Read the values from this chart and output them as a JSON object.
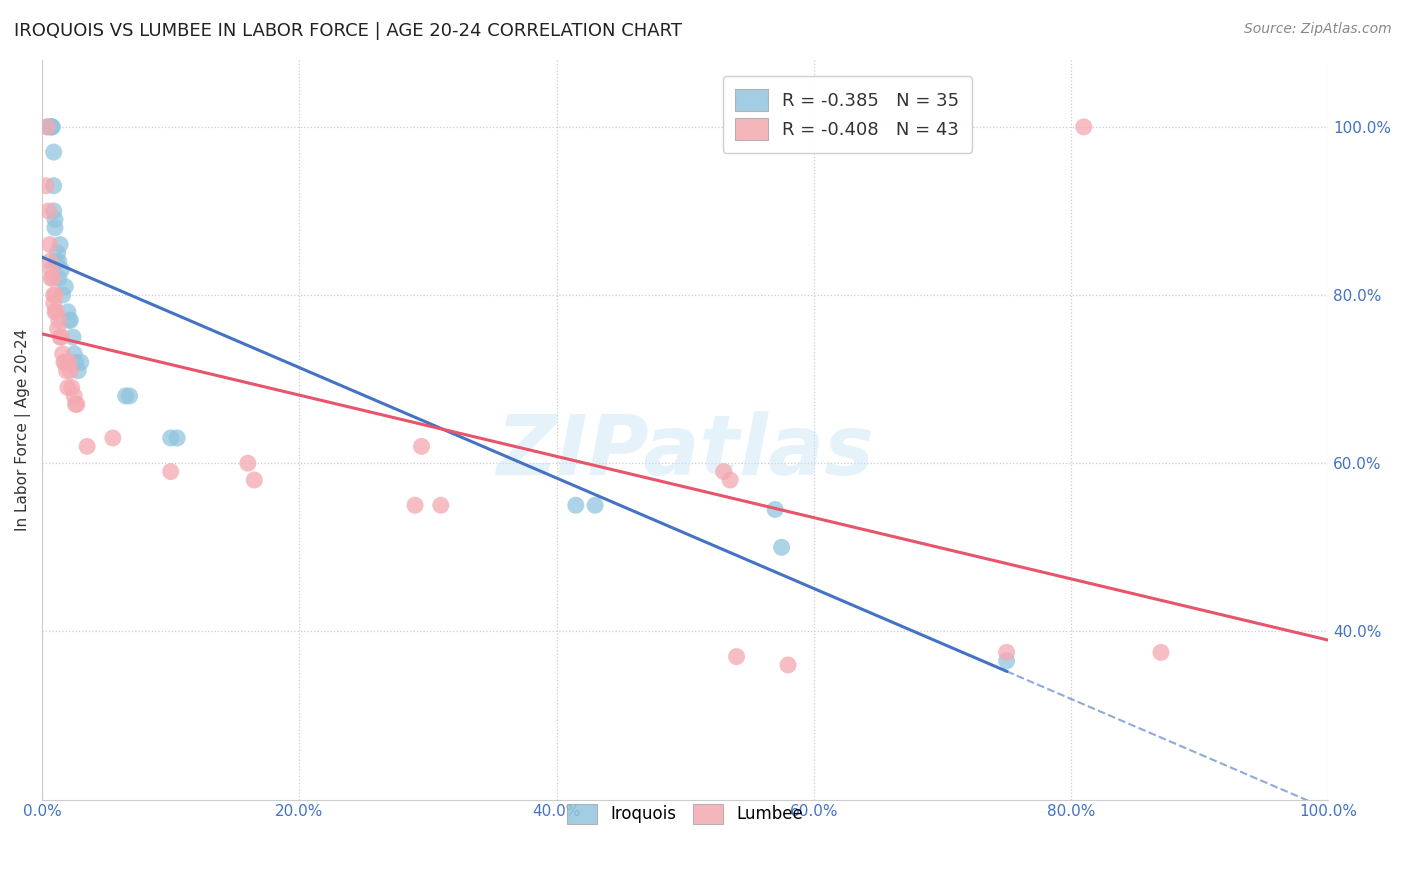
{
  "title": "IROQUOIS VS LUMBEE IN LABOR FORCE | AGE 20-24 CORRELATION CHART",
  "source": "Source: ZipAtlas.com",
  "ylabel": "In Labor Force | Age 20-24",
  "xlim": [
    0.0,
    1.0
  ],
  "ylim": [
    0.2,
    1.08
  ],
  "xticks": [
    0.0,
    0.2,
    0.4,
    0.6,
    0.8,
    1.0
  ],
  "yticks": [
    0.4,
    0.6,
    0.8,
    1.0
  ],
  "xtick_labels": [
    "0.0%",
    "20.0%",
    "40.0%",
    "60.0%",
    "80.0%",
    "100.0%"
  ],
  "ytick_labels": [
    "40.0%",
    "60.0%",
    "80.0%",
    "100.0%"
  ],
  "iroquois_R": -0.385,
  "iroquois_N": 35,
  "lumbee_R": -0.408,
  "lumbee_N": 43,
  "iroquois_color": "#92c5de",
  "lumbee_color": "#f4a9b0",
  "iroquois_line_color": "#4472c4",
  "lumbee_line_color": "#e8546a",
  "watermark": "ZIPatlas",
  "tick_color": "#4472c4",
  "iroquois_x": [
    0.004,
    0.007,
    0.007,
    0.007,
    0.008,
    0.009,
    0.009,
    0.009,
    0.01,
    0.01,
    0.011,
    0.012,
    0.013,
    0.013,
    0.014,
    0.015,
    0.016,
    0.018,
    0.02,
    0.021,
    0.022,
    0.024,
    0.025,
    0.026,
    0.028,
    0.03,
    0.065,
    0.068,
    0.1,
    0.105,
    0.415,
    0.43,
    0.57,
    0.575,
    0.75
  ],
  "iroquois_y": [
    1.0,
    1.0,
    1.0,
    1.0,
    1.0,
    0.97,
    0.93,
    0.9,
    0.88,
    0.89,
    0.84,
    0.85,
    0.84,
    0.82,
    0.86,
    0.83,
    0.8,
    0.81,
    0.78,
    0.77,
    0.77,
    0.75,
    0.73,
    0.72,
    0.71,
    0.72,
    0.68,
    0.68,
    0.63,
    0.63,
    0.55,
    0.55,
    0.545,
    0.5,
    0.365
  ],
  "lumbee_x": [
    0.003,
    0.004,
    0.005,
    0.006,
    0.006,
    0.007,
    0.007,
    0.008,
    0.009,
    0.009,
    0.01,
    0.01,
    0.011,
    0.012,
    0.013,
    0.014,
    0.015,
    0.016,
    0.017,
    0.018,
    0.019,
    0.02,
    0.021,
    0.022,
    0.023,
    0.025,
    0.026,
    0.027,
    0.035,
    0.055,
    0.1,
    0.16,
    0.165,
    0.29,
    0.295,
    0.31,
    0.53,
    0.535,
    0.54,
    0.58,
    0.75,
    0.81,
    0.87
  ],
  "lumbee_y": [
    0.93,
    1.0,
    0.9,
    0.86,
    0.84,
    0.82,
    0.83,
    0.82,
    0.8,
    0.79,
    0.78,
    0.8,
    0.78,
    0.76,
    0.77,
    0.75,
    0.75,
    0.73,
    0.72,
    0.72,
    0.71,
    0.69,
    0.72,
    0.71,
    0.69,
    0.68,
    0.67,
    0.67,
    0.62,
    0.63,
    0.59,
    0.6,
    0.58,
    0.55,
    0.62,
    0.55,
    0.59,
    0.58,
    0.37,
    0.36,
    0.375,
    1.0,
    0.375
  ]
}
